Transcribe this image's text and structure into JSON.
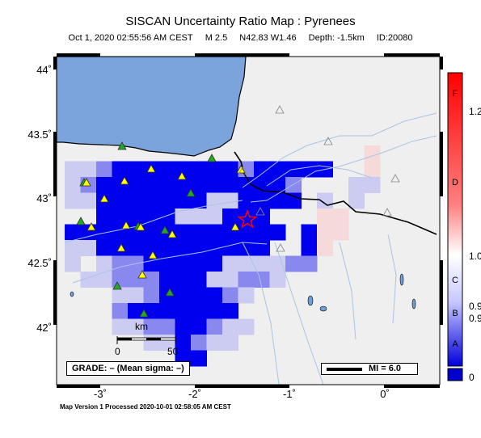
{
  "header": {
    "title": "SISCAN Uncertainty Ratio Map : Pyrenees",
    "date": "Oct  1, 2020 02:55:56 AM CEST",
    "magnitude": "M 2.5",
    "location": "N42.83 W1.46",
    "depth": "Depth: -1.5km",
    "event_id": "ID:20080"
  },
  "axes": {
    "lat_labels": [
      "44˚",
      "43.5˚",
      "43˚",
      "42.5˚",
      "42˚"
    ],
    "lon_labels": [
      "-3˚",
      "-2˚",
      "-1˚",
      "0˚"
    ]
  },
  "scale_bar": {
    "unit": "km",
    "start": "0",
    "end": "50"
  },
  "grade": {
    "text": "GRADE: – (Mean sigma: –)"
  },
  "mi_legend": {
    "text": "MI = 6.0"
  },
  "colorbar": {
    "letters": [
      "F",
      "D",
      "C",
      "B",
      "A"
    ],
    "values": [
      "1.2",
      "1.0",
      "0.9",
      "0.9",
      "0"
    ]
  },
  "footer": {
    "text": "Map Version 1 Processed 2020-10-01 02:58:05 AM CEST"
  },
  "colors": {
    "ocean": "#7ba4dc",
    "land": "#efefef",
    "high": "#0000ee",
    "epicenter": "#ff0000",
    "station_active": "#ffff00",
    "station_other": "#22aa22"
  }
}
